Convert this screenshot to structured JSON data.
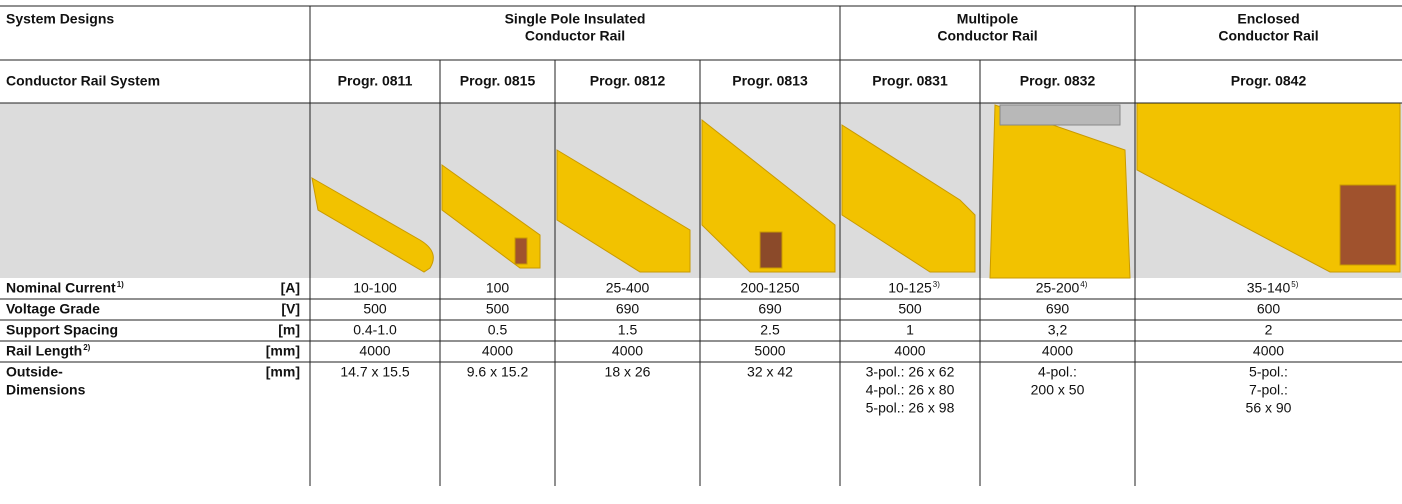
{
  "header": {
    "label": "System Designs",
    "groups": [
      {
        "lines": [
          "Single Pole Insulated",
          "Conductor Rail"
        ]
      },
      {
        "lines": [
          "Multipole",
          "Conductor Rail"
        ]
      },
      {
        "lines": [
          "Enclosed",
          "Conductor Rail"
        ]
      }
    ]
  },
  "system_row": {
    "label": "Conductor Rail System",
    "programs": [
      "Progr. 0811",
      "Progr. 0815",
      "Progr. 0812",
      "Progr. 0813",
      "Progr. 0831",
      "Progr. 0832",
      "Progr. 0842"
    ]
  },
  "rows": [
    {
      "label_lines": [
        "Nominal Current"
      ],
      "note": "1)",
      "unit": "[A]",
      "cells": [
        {
          "lines": [
            "10-100"
          ]
        },
        {
          "lines": [
            "100"
          ]
        },
        {
          "lines": [
            "25-400"
          ]
        },
        {
          "lines": [
            "200-1250"
          ]
        },
        {
          "lines": [
            "10-125"
          ],
          "note": "3)"
        },
        {
          "lines": [
            "25-200"
          ],
          "note": "4)"
        },
        {
          "lines": [
            "35-140"
          ],
          "note": "5)"
        }
      ]
    },
    {
      "label_lines": [
        "Voltage Grade"
      ],
      "unit": "[V]",
      "cells": [
        {
          "lines": [
            "500"
          ]
        },
        {
          "lines": [
            "500"
          ]
        },
        {
          "lines": [
            "690"
          ]
        },
        {
          "lines": [
            "690"
          ]
        },
        {
          "lines": [
            "500"
          ]
        },
        {
          "lines": [
            "690"
          ]
        },
        {
          "lines": [
            "600"
          ]
        }
      ]
    },
    {
      "label_lines": [
        "Support Spacing"
      ],
      "unit": "[m]",
      "cells": [
        {
          "lines": [
            "0.4-1.0"
          ]
        },
        {
          "lines": [
            "0.5"
          ]
        },
        {
          "lines": [
            "1.5"
          ]
        },
        {
          "lines": [
            "2.5"
          ]
        },
        {
          "lines": [
            "1"
          ]
        },
        {
          "lines": [
            "3,2"
          ]
        },
        {
          "lines": [
            "2"
          ]
        }
      ]
    },
    {
      "label_lines": [
        "Rail Length"
      ],
      "note": "2)",
      "unit": "[mm]",
      "cells": [
        {
          "lines": [
            "4000"
          ]
        },
        {
          "lines": [
            "4000"
          ]
        },
        {
          "lines": [
            "4000"
          ]
        },
        {
          "lines": [
            "5000"
          ]
        },
        {
          "lines": [
            "4000"
          ]
        },
        {
          "lines": [
            "4000"
          ]
        },
        {
          "lines": [
            "4000"
          ]
        }
      ]
    },
    {
      "label_lines": [
        "Outside-",
        "Dimensions"
      ],
      "unit": "[mm]",
      "cells": [
        {
          "lines": [
            "14.7 x 15.5"
          ]
        },
        {
          "lines": [
            "9.6 x 15.2"
          ]
        },
        {
          "lines": [
            "18 x 26"
          ]
        },
        {
          "lines": [
            "32 x 42"
          ]
        },
        {
          "lines": [
            "3-pol.: 26 x 62",
            "4-pol.: 26 x 80",
            "5-pol.: 26 x 98"
          ]
        },
        {
          "lines": [
            "4-pol.:",
            "200 x 50"
          ]
        },
        {
          "lines": [
            "5-pol.:",
            "7-pol.:",
            "56 x 90"
          ]
        }
      ]
    }
  ]
}
